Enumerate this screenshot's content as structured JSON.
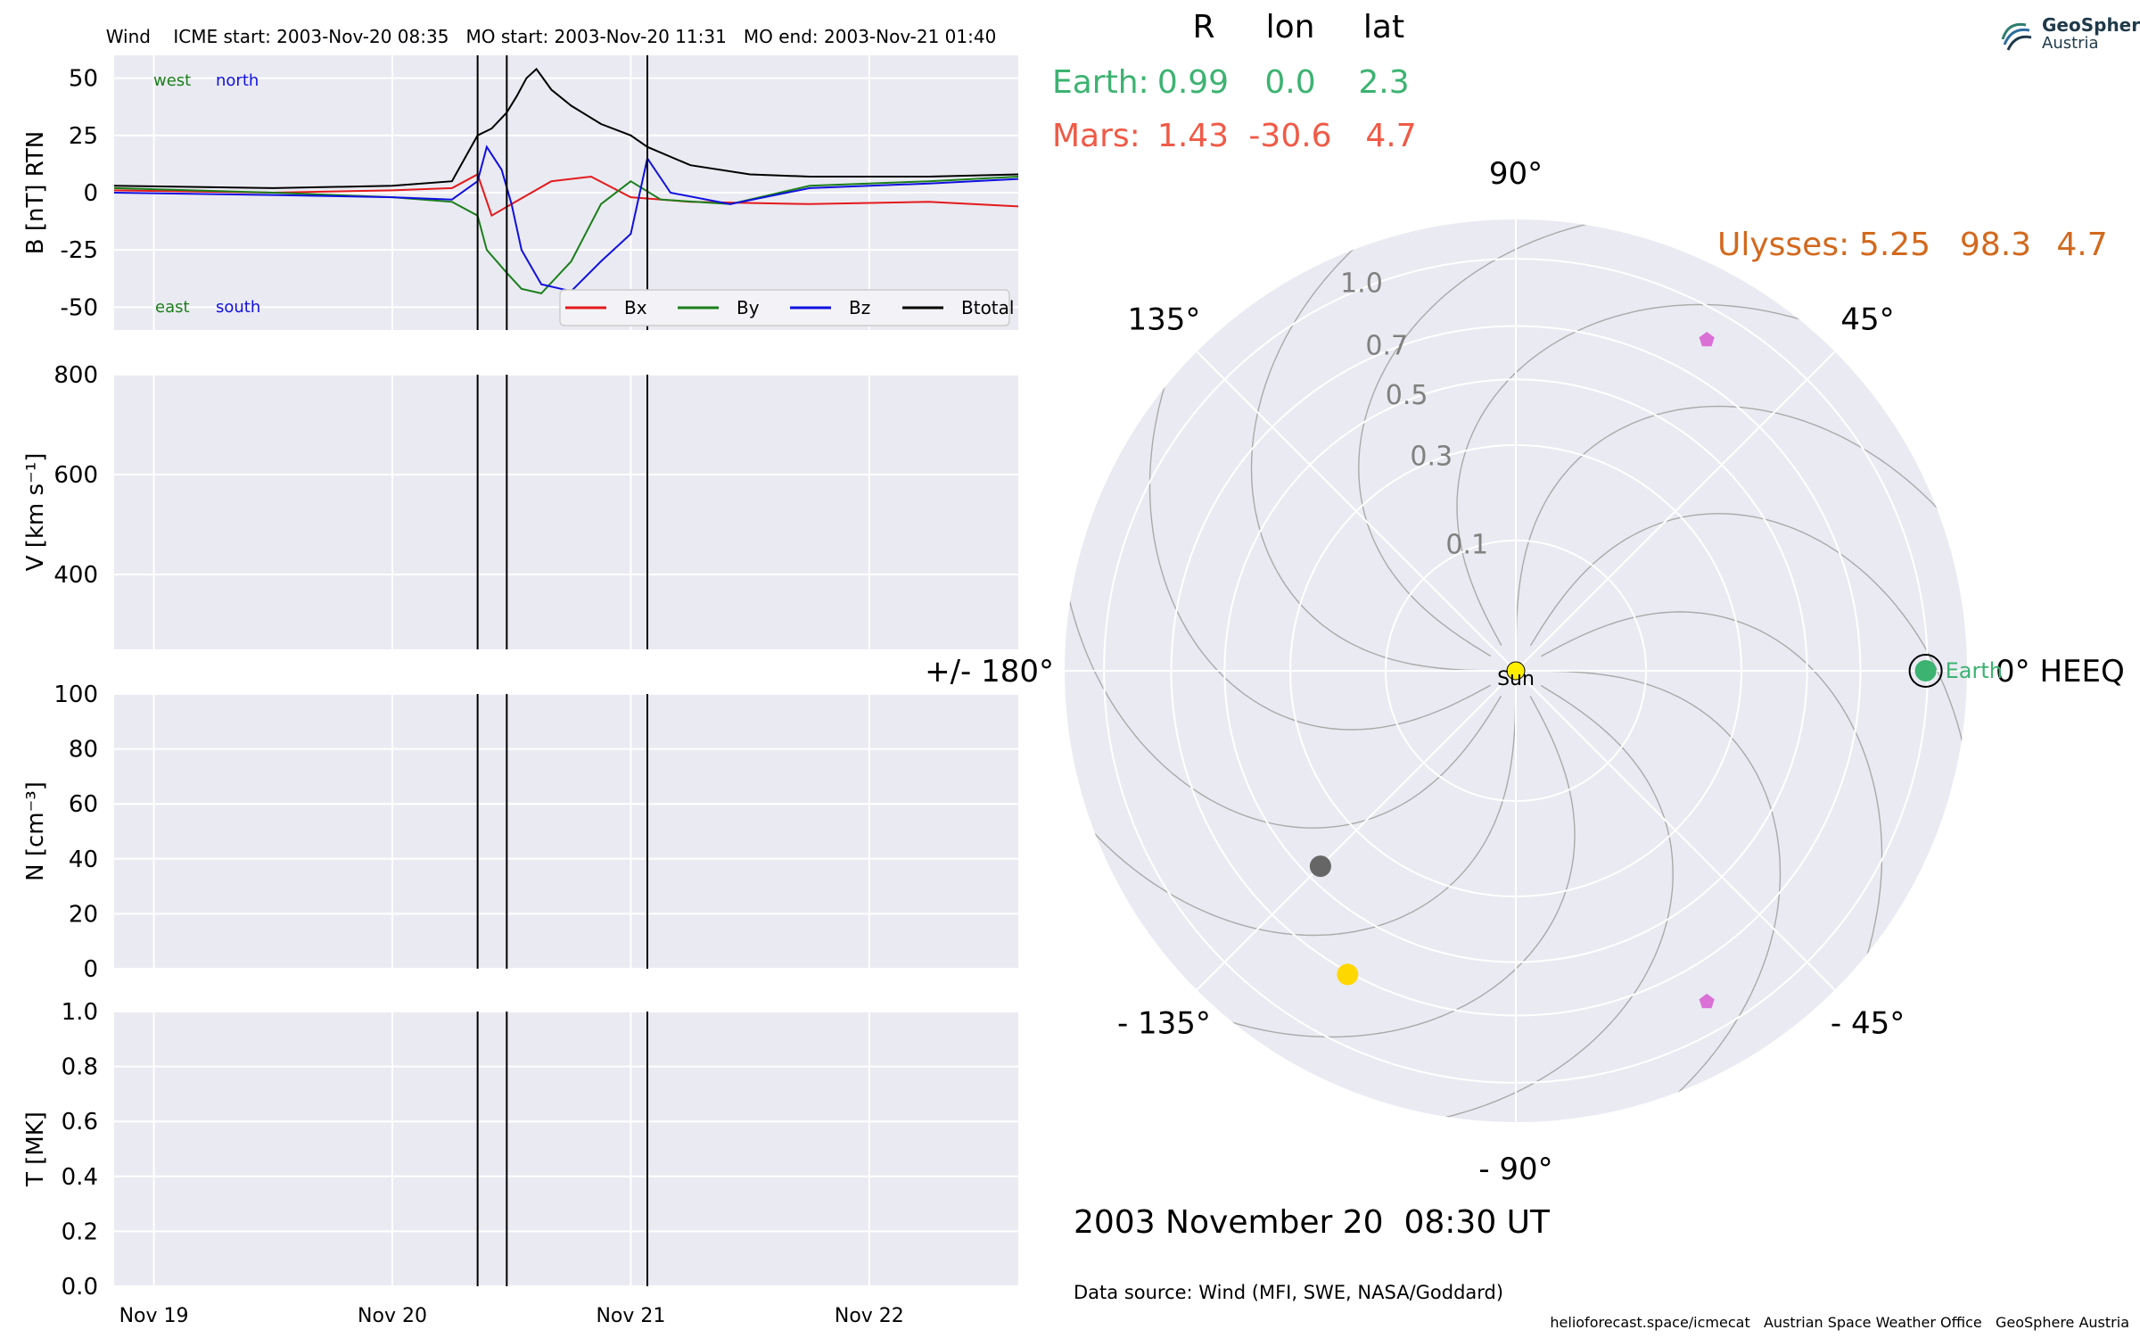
{
  "header": {
    "title": "Wind    ICME start: 2003-Nov-20 08:35   MO start: 2003-Nov-20 11:31   MO end: 2003-Nov-21 01:40"
  },
  "logo": {
    "line1": "GeoSphere",
    "line2": "Austria"
  },
  "footer": {
    "date": "2003 November 20  08:30 UT",
    "source": "Data source: Wind (MFI, SWE, NASA/Goddard)",
    "credits": "helioforecast.space/icmecat   Austrian Space Weather Office   GeoSphere Austria"
  },
  "colors": {
    "panel_bg": "#eaeaf2",
    "bx": "#e41a1c",
    "by": "#1a7f1a",
    "bz": "#1010e0",
    "btotal": "#000000",
    "earth": "#3cb371",
    "mars": "#f05a46",
    "ulysses": "#d2691e",
    "sun": "#ffee00",
    "mercury": "#666666",
    "venus": "#ffd700",
    "probe": "#da70d6"
  },
  "chart_data": [
    {
      "type": "line",
      "panel": "magnetic-field",
      "ylabel": "B [nT] RTN",
      "ylim": [
        -60,
        60
      ],
      "yticks": [
        50,
        25,
        0,
        -25,
        -50
      ],
      "xlim": [
        "2003-11-18 20:00",
        "2003-11-22 15:00"
      ],
      "xticks": [
        "2003-11-19",
        "2003-11-20",
        "2003-11-21",
        "2003-11-22"
      ],
      "xticklabels": [
        "Nov 19",
        "Nov 20",
        "Nov 21",
        "Nov 22"
      ],
      "annotations": {
        "west": "west",
        "north": "north",
        "east": "east",
        "south": "south"
      },
      "legend": [
        "Bx",
        "By",
        "Bz",
        "Btotal"
      ],
      "legend_placement": "lower-right",
      "event_lines": [
        "2003-11-20 08:35",
        "2003-11-20 11:31",
        "2003-11-21 01:40"
      ],
      "series": [
        {
          "name": "Bx",
          "points": [
            [
              "2003-11-18 20:00",
              1
            ],
            [
              "2003-11-19 12:00",
              0
            ],
            [
              "2003-11-20 00:00",
              1
            ],
            [
              "2003-11-20 06:00",
              2
            ],
            [
              "2003-11-20 08:35",
              8
            ],
            [
              "2003-11-20 10:00",
              -10
            ],
            [
              "2003-11-20 12:00",
              -5
            ],
            [
              "2003-11-20 16:00",
              5
            ],
            [
              "2003-11-20 20:00",
              7
            ],
            [
              "2003-11-21 00:00",
              -2
            ],
            [
              "2003-11-21 06:00",
              -4
            ],
            [
              "2003-11-21 18:00",
              -5
            ],
            [
              "2003-11-22 06:00",
              -4
            ],
            [
              "2003-11-22 15:00",
              -6
            ]
          ]
        },
        {
          "name": "By",
          "points": [
            [
              "2003-11-18 20:00",
              2
            ],
            [
              "2003-11-19 12:00",
              0
            ],
            [
              "2003-11-20 00:00",
              -2
            ],
            [
              "2003-11-20 06:00",
              -4
            ],
            [
              "2003-11-20 08:35",
              -10
            ],
            [
              "2003-11-20 09:30",
              -25
            ],
            [
              "2003-11-20 11:31",
              -35
            ],
            [
              "2003-11-20 13:00",
              -42
            ],
            [
              "2003-11-20 15:00",
              -44
            ],
            [
              "2003-11-20 18:00",
              -30
            ],
            [
              "2003-11-20 21:00",
              -5
            ],
            [
              "2003-11-21 00:00",
              5
            ],
            [
              "2003-11-21 03:00",
              -3
            ],
            [
              "2003-11-21 10:00",
              -5
            ],
            [
              "2003-11-21 18:00",
              3
            ],
            [
              "2003-11-22 06:00",
              5
            ],
            [
              "2003-11-22 15:00",
              7
            ]
          ]
        },
        {
          "name": "Bz",
          "points": [
            [
              "2003-11-18 20:00",
              0
            ],
            [
              "2003-11-19 12:00",
              -1
            ],
            [
              "2003-11-20 00:00",
              -2
            ],
            [
              "2003-11-20 06:00",
              -3
            ],
            [
              "2003-11-20 08:35",
              5
            ],
            [
              "2003-11-20 09:30",
              20
            ],
            [
              "2003-11-20 11:00",
              10
            ],
            [
              "2003-11-20 12:00",
              -5
            ],
            [
              "2003-11-20 13:00",
              -25
            ],
            [
              "2003-11-20 15:00",
              -40
            ],
            [
              "2003-11-20 18:00",
              -43
            ],
            [
              "2003-11-20 21:00",
              -30
            ],
            [
              "2003-11-21 00:00",
              -18
            ],
            [
              "2003-11-21 01:40",
              15
            ],
            [
              "2003-11-21 04:00",
              0
            ],
            [
              "2003-11-21 10:00",
              -5
            ],
            [
              "2003-11-21 18:00",
              2
            ],
            [
              "2003-11-22 06:00",
              4
            ],
            [
              "2003-11-22 15:00",
              6
            ]
          ]
        },
        {
          "name": "Btotal",
          "points": [
            [
              "2003-11-18 20:00",
              3
            ],
            [
              "2003-11-19 12:00",
              2
            ],
            [
              "2003-11-20 00:00",
              3
            ],
            [
              "2003-11-20 06:00",
              5
            ],
            [
              "2003-11-20 08:35",
              25
            ],
            [
              "2003-11-20 10:00",
              28
            ],
            [
              "2003-11-20 11:31",
              35
            ],
            [
              "2003-11-20 12:30",
              42
            ],
            [
              "2003-11-20 13:30",
              50
            ],
            [
              "2003-11-20 14:30",
              54
            ],
            [
              "2003-11-20 16:00",
              45
            ],
            [
              "2003-11-20 18:00",
              38
            ],
            [
              "2003-11-20 21:00",
              30
            ],
            [
              "2003-11-21 00:00",
              25
            ],
            [
              "2003-11-21 01:40",
              20
            ],
            [
              "2003-11-21 06:00",
              12
            ],
            [
              "2003-11-21 12:00",
              8
            ],
            [
              "2003-11-21 18:00",
              7
            ],
            [
              "2003-11-22 06:00",
              7
            ],
            [
              "2003-11-22 15:00",
              8
            ]
          ]
        }
      ]
    },
    {
      "type": "line",
      "panel": "velocity",
      "ylabel": "V [km s⁻¹]",
      "ylim": [
        250,
        800
      ],
      "yticks": [
        800,
        600,
        400
      ],
      "series": []
    },
    {
      "type": "line",
      "panel": "density",
      "ylabel": "N [cm⁻³]",
      "ylim": [
        0,
        100
      ],
      "yticks": [
        100,
        80,
        60,
        40,
        20,
        0
      ],
      "series": []
    },
    {
      "type": "line",
      "panel": "temperature",
      "ylabel": "T [MK]",
      "ylim": [
        0,
        1
      ],
      "yticks": [
        1.0,
        0.8,
        0.6,
        0.4,
        0.2,
        0.0
      ],
      "yticklabels": [
        "1.0",
        "0.8",
        "0.6",
        "0.4",
        "0.2",
        "0.0"
      ],
      "series": []
    },
    {
      "type": "scatter",
      "panel": "polar-position-plot",
      "coordinate_system": "0° HEEQ",
      "r_scale": "sqrt",
      "rmax": 1.2,
      "r_ticks": [
        0.1,
        0.3,
        0.5,
        0.7,
        1.0
      ],
      "r_ticklabels": [
        "0.1",
        "0.3",
        "0.5",
        "0.7",
        "1.0"
      ],
      "angle_labels": [
        {
          "deg": 0,
          "text": "0° HEEQ"
        },
        {
          "deg": 45,
          "text": "45°"
        },
        {
          "deg": 90,
          "text": "90°"
        },
        {
          "deg": 135,
          "text": "135°"
        },
        {
          "deg": 180,
          "text": "+/- 180°"
        },
        {
          "deg": -135,
          "text": "- 135°"
        },
        {
          "deg": -90,
          "text": "- 90°"
        },
        {
          "deg": -45,
          "text": "- 45°"
        }
      ],
      "table_header": [
        "R",
        "lon",
        "lat"
      ],
      "bodies": [
        {
          "name": "Earth",
          "R": "0.99",
          "lon": "0.0",
          "lat": "2.3",
          "plot": {
            "r": 0.99,
            "lon": 0
          }
        },
        {
          "name": "Mars",
          "R": "1.43",
          "lon": "-30.6",
          "lat": "4.7"
        },
        {
          "name": "Ulysses",
          "R": "5.25",
          "lon": "98.3",
          "lat": "4.7"
        }
      ],
      "markers": [
        {
          "name": "Sun",
          "r": 0.0,
          "lon": 0
        },
        {
          "name": "mercury",
          "r": 0.45,
          "lon": -135
        },
        {
          "name": "venus",
          "r": 0.71,
          "lon": -119
        },
        {
          "name": "probe-north",
          "r": 0.86,
          "lon": 60
        },
        {
          "name": "probe-south",
          "r": 0.86,
          "lon": -60
        }
      ],
      "earth_label": "Earth",
      "sun_label": "Sun"
    }
  ]
}
